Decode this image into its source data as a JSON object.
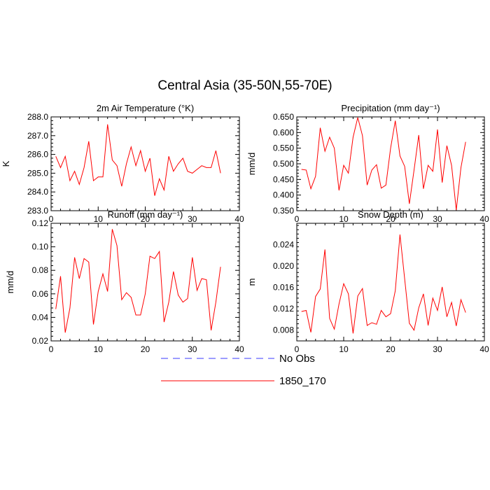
{
  "title": "Central Asia (35-50N,55-70E)",
  "legend": [
    {
      "label": "No Obs",
      "color": "#3b3bff",
      "style": "dashed"
    },
    {
      "label": "1850_170",
      "color": "#ff0000",
      "style": "solid"
    }
  ],
  "chart_data": [
    {
      "type": "line",
      "title": "2m Air Temperature (°K)",
      "ylabel": "K",
      "xlim": [
        0,
        40
      ],
      "ylim": [
        283.0,
        288.0
      ],
      "xticks": [
        0,
        10,
        20,
        30,
        40
      ],
      "yticks": [
        283.0,
        284.0,
        285.0,
        286.0,
        287.0,
        288.0
      ],
      "ytick_labels": [
        "283.0",
        "284.0",
        "285.0",
        "286.0",
        "287.0",
        "288.0"
      ],
      "series": [
        {
          "name": "1850_170",
          "color": "#ff0000",
          "x": [
            1,
            2,
            3,
            4,
            5,
            6,
            7,
            8,
            9,
            10,
            11,
            12,
            13,
            14,
            15,
            16,
            17,
            18,
            19,
            20,
            21,
            22,
            23,
            24,
            25,
            26,
            27,
            28,
            29,
            30,
            31,
            32,
            33,
            34,
            35,
            36
          ],
          "y": [
            285.9,
            285.3,
            285.9,
            284.6,
            285.1,
            284.4,
            285.3,
            286.7,
            284.6,
            284.8,
            284.8,
            287.6,
            285.7,
            285.4,
            284.3,
            285.5,
            286.4,
            285.4,
            286.2,
            285.1,
            285.8,
            283.8,
            284.7,
            284.1,
            285.9,
            285.1,
            285.5,
            285.8,
            285.1,
            285.0,
            285.2,
            285.4,
            285.3,
            285.3,
            286.2,
            285.0
          ]
        }
      ]
    },
    {
      "type": "line",
      "title": "Precipitation (mm day⁻¹)",
      "ylabel": "mm/d",
      "xlim": [
        0,
        40
      ],
      "ylim": [
        0.35,
        0.65
      ],
      "xticks": [
        0,
        10,
        20,
        30,
        40
      ],
      "yticks": [
        0.35,
        0.4,
        0.45,
        0.5,
        0.55,
        0.6,
        0.65
      ],
      "ytick_labels": [
        "0.350",
        "0.400",
        "0.450",
        "0.500",
        "0.550",
        "0.600",
        "0.650"
      ],
      "series": [
        {
          "name": "1850_170",
          "color": "#ff0000",
          "x": [
            1,
            2,
            3,
            4,
            5,
            6,
            7,
            8,
            9,
            10,
            11,
            12,
            13,
            14,
            15,
            16,
            17,
            18,
            19,
            20,
            21,
            22,
            23,
            24,
            25,
            26,
            27,
            28,
            29,
            30,
            31,
            32,
            33,
            34,
            35,
            36
          ],
          "y": [
            0.482,
            0.48,
            0.42,
            0.46,
            0.615,
            0.54,
            0.585,
            0.55,
            0.415,
            0.495,
            0.47,
            0.585,
            0.648,
            0.59,
            0.432,
            0.48,
            0.497,
            0.422,
            0.432,
            0.55,
            0.638,
            0.525,
            0.492,
            0.372,
            0.48,
            0.592,
            0.42,
            0.495,
            0.476,
            0.61,
            0.44,
            0.558,
            0.495,
            0.352,
            0.488,
            0.57
          ]
        }
      ]
    },
    {
      "type": "line",
      "title": "Runoff (mm day⁻¹)",
      "ylabel": "mm/d",
      "xlim": [
        0,
        40
      ],
      "ylim": [
        0.02,
        0.12
      ],
      "xticks": [
        0,
        10,
        20,
        30,
        40
      ],
      "yticks": [
        0.02,
        0.04,
        0.06,
        0.08,
        0.1,
        0.12
      ],
      "ytick_labels": [
        "0.02",
        "0.04",
        "0.06",
        "0.08",
        "0.10",
        "0.12"
      ],
      "series": [
        {
          "name": "1850_170",
          "color": "#ff0000",
          "x": [
            1,
            2,
            3,
            4,
            5,
            6,
            7,
            8,
            9,
            10,
            11,
            12,
            13,
            14,
            15,
            16,
            17,
            18,
            19,
            20,
            21,
            22,
            23,
            24,
            25,
            26,
            27,
            28,
            29,
            30,
            31,
            32,
            33,
            34,
            35,
            36
          ],
          "y": [
            0.047,
            0.075,
            0.027,
            0.048,
            0.091,
            0.073,
            0.09,
            0.087,
            0.034,
            0.062,
            0.077,
            0.062,
            0.115,
            0.101,
            0.055,
            0.061,
            0.057,
            0.042,
            0.042,
            0.06,
            0.092,
            0.09,
            0.096,
            0.036,
            0.053,
            0.079,
            0.059,
            0.053,
            0.056,
            0.091,
            0.063,
            0.073,
            0.072,
            0.029,
            0.053,
            0.083
          ]
        }
      ]
    },
    {
      "type": "line",
      "title": "Snow Depth (m)",
      "ylabel": "m",
      "xlim": [
        0,
        40
      ],
      "ylim": [
        0.006,
        0.028
      ],
      "xticks": [
        0,
        10,
        20,
        30,
        40
      ],
      "yticks": [
        0.008,
        0.012,
        0.016,
        0.02,
        0.024
      ],
      "ytick_labels": [
        "0.008",
        "0.012",
        "0.016",
        "0.020",
        "0.024"
      ],
      "series": [
        {
          "name": "1850_170",
          "color": "#ff0000",
          "x": [
            1,
            2,
            3,
            4,
            5,
            6,
            7,
            8,
            9,
            10,
            11,
            12,
            13,
            14,
            15,
            16,
            17,
            18,
            19,
            20,
            21,
            22,
            23,
            24,
            25,
            26,
            27,
            28,
            29,
            30,
            31,
            32,
            33,
            34,
            35,
            36
          ],
          "y": [
            0.0115,
            0.0117,
            0.0076,
            0.0143,
            0.0157,
            0.0231,
            0.0102,
            0.0082,
            0.0129,
            0.0167,
            0.0148,
            0.0074,
            0.0144,
            0.0158,
            0.0089,
            0.0094,
            0.0091,
            0.0117,
            0.0105,
            0.0111,
            0.0154,
            0.0259,
            0.0176,
            0.0093,
            0.008,
            0.0122,
            0.0148,
            0.0089,
            0.014,
            0.0117,
            0.0161,
            0.0105,
            0.0132,
            0.0088,
            0.0137,
            0.0113
          ]
        }
      ]
    }
  ]
}
